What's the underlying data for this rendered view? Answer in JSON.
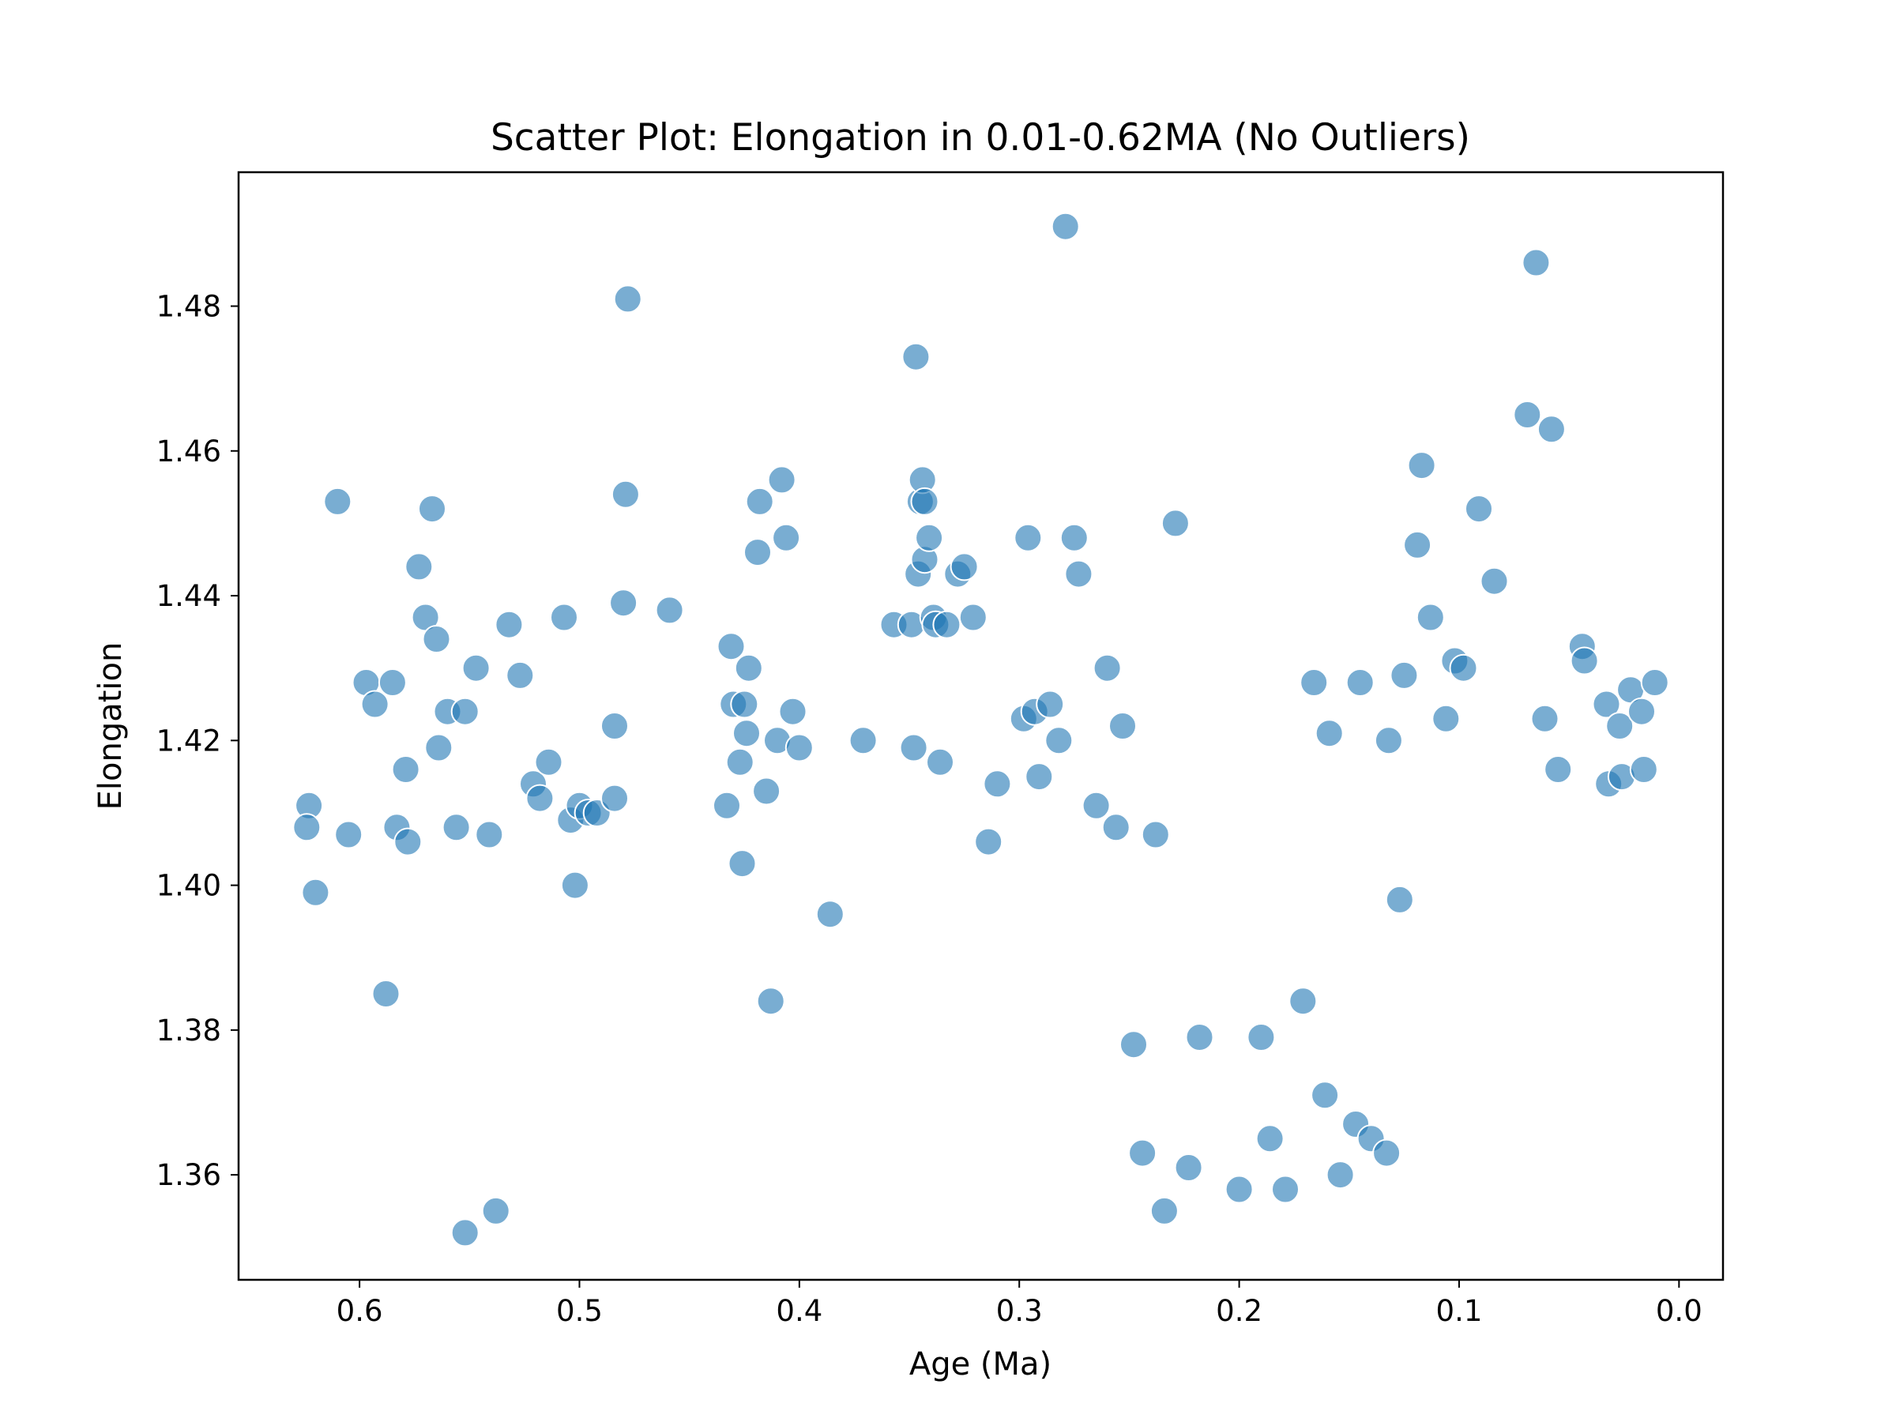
{
  "chart_data": {
    "type": "scatter",
    "title": "Scatter Plot: Elongation in 0.01-0.62MA (No Outliers)",
    "xlabel": "Age (Ma)",
    "ylabel": "Elongation",
    "xlim": [
      0.655,
      -0.02
    ],
    "ylim": [
      1.3455,
      1.4985
    ],
    "x_inverted": true,
    "grid": false,
    "legend": "none",
    "point_color": "#1f77b4",
    "x_ticks": [
      {
        "value": 0.6,
        "label": "0.6"
      },
      {
        "value": 0.5,
        "label": "0.5"
      },
      {
        "value": 0.4,
        "label": "0.4"
      },
      {
        "value": 0.3,
        "label": "0.3"
      },
      {
        "value": 0.2,
        "label": "0.2"
      },
      {
        "value": 0.1,
        "label": "0.1"
      },
      {
        "value": 0.0,
        "label": "0.0"
      }
    ],
    "y_ticks": [
      {
        "value": 1.36,
        "label": "1.36"
      },
      {
        "value": 1.38,
        "label": "1.38"
      },
      {
        "value": 1.4,
        "label": "1.40"
      },
      {
        "value": 1.42,
        "label": "1.42"
      },
      {
        "value": 1.44,
        "label": "1.44"
      },
      {
        "value": 1.46,
        "label": "1.46"
      },
      {
        "value": 1.48,
        "label": "1.48"
      }
    ],
    "series": [
      {
        "points": [
          [
            0.61,
            1.453
          ],
          [
            0.623,
            1.411
          ],
          [
            0.624,
            1.408
          ],
          [
            0.62,
            1.399
          ],
          [
            0.605,
            1.407
          ],
          [
            0.597,
            1.428
          ],
          [
            0.593,
            1.425
          ],
          [
            0.585,
            1.428
          ],
          [
            0.588,
            1.385
          ],
          [
            0.583,
            1.408
          ],
          [
            0.579,
            1.416
          ],
          [
            0.578,
            1.406
          ],
          [
            0.573,
            1.444
          ],
          [
            0.57,
            1.437
          ],
          [
            0.567,
            1.452
          ],
          [
            0.565,
            1.434
          ],
          [
            0.564,
            1.419
          ],
          [
            0.56,
            1.424
          ],
          [
            0.556,
            1.408
          ],
          [
            0.552,
            1.424
          ],
          [
            0.552,
            1.352
          ],
          [
            0.547,
            1.43
          ],
          [
            0.541,
            1.407
          ],
          [
            0.538,
            1.355
          ],
          [
            0.532,
            1.436
          ],
          [
            0.527,
            1.429
          ],
          [
            0.521,
            1.414
          ],
          [
            0.518,
            1.412
          ],
          [
            0.514,
            1.417
          ],
          [
            0.507,
            1.437
          ],
          [
            0.504,
            1.409
          ],
          [
            0.502,
            1.4
          ],
          [
            0.5,
            1.411
          ],
          [
            0.496,
            1.41
          ],
          [
            0.492,
            1.41
          ],
          [
            0.484,
            1.412
          ],
          [
            0.484,
            1.422
          ],
          [
            0.48,
            1.439
          ],
          [
            0.479,
            1.454
          ],
          [
            0.478,
            1.481
          ],
          [
            0.459,
            1.438
          ],
          [
            0.433,
            1.411
          ],
          [
            0.431,
            1.433
          ],
          [
            0.43,
            1.425
          ],
          [
            0.427,
            1.417
          ],
          [
            0.426,
            1.403
          ],
          [
            0.425,
            1.425
          ],
          [
            0.424,
            1.421
          ],
          [
            0.423,
            1.43
          ],
          [
            0.419,
            1.446
          ],
          [
            0.418,
            1.453
          ],
          [
            0.415,
            1.413
          ],
          [
            0.413,
            1.384
          ],
          [
            0.41,
            1.42
          ],
          [
            0.408,
            1.456
          ],
          [
            0.406,
            1.448
          ],
          [
            0.403,
            1.424
          ],
          [
            0.4,
            1.419
          ],
          [
            0.386,
            1.396
          ],
          [
            0.371,
            1.42
          ],
          [
            0.357,
            1.436
          ],
          [
            0.349,
            1.436
          ],
          [
            0.348,
            1.419
          ],
          [
            0.347,
            1.473
          ],
          [
            0.346,
            1.443
          ],
          [
            0.345,
            1.453
          ],
          [
            0.344,
            1.456
          ],
          [
            0.343,
            1.453
          ],
          [
            0.343,
            1.445
          ],
          [
            0.341,
            1.448
          ],
          [
            0.339,
            1.437
          ],
          [
            0.338,
            1.436
          ],
          [
            0.336,
            1.417
          ],
          [
            0.333,
            1.436
          ],
          [
            0.328,
            1.443
          ],
          [
            0.325,
            1.444
          ],
          [
            0.321,
            1.437
          ],
          [
            0.314,
            1.406
          ],
          [
            0.31,
            1.414
          ],
          [
            0.298,
            1.423
          ],
          [
            0.296,
            1.448
          ],
          [
            0.293,
            1.424
          ],
          [
            0.291,
            1.415
          ],
          [
            0.286,
            1.425
          ],
          [
            0.282,
            1.42
          ],
          [
            0.279,
            1.491
          ],
          [
            0.275,
            1.448
          ],
          [
            0.273,
            1.443
          ],
          [
            0.265,
            1.411
          ],
          [
            0.26,
            1.43
          ],
          [
            0.256,
            1.408
          ],
          [
            0.253,
            1.422
          ],
          [
            0.248,
            1.378
          ],
          [
            0.244,
            1.363
          ],
          [
            0.238,
            1.407
          ],
          [
            0.234,
            1.355
          ],
          [
            0.229,
            1.45
          ],
          [
            0.223,
            1.361
          ],
          [
            0.218,
            1.379
          ],
          [
            0.2,
            1.358
          ],
          [
            0.19,
            1.379
          ],
          [
            0.186,
            1.365
          ],
          [
            0.179,
            1.358
          ],
          [
            0.171,
            1.384
          ],
          [
            0.166,
            1.428
          ],
          [
            0.161,
            1.371
          ],
          [
            0.159,
            1.421
          ],
          [
            0.154,
            1.36
          ],
          [
            0.147,
            1.367
          ],
          [
            0.145,
            1.428
          ],
          [
            0.14,
            1.365
          ],
          [
            0.133,
            1.363
          ],
          [
            0.132,
            1.42
          ],
          [
            0.127,
            1.398
          ],
          [
            0.125,
            1.429
          ],
          [
            0.119,
            1.447
          ],
          [
            0.117,
            1.458
          ],
          [
            0.113,
            1.437
          ],
          [
            0.106,
            1.423
          ],
          [
            0.102,
            1.431
          ],
          [
            0.098,
            1.43
          ],
          [
            0.091,
            1.452
          ],
          [
            0.084,
            1.442
          ],
          [
            0.069,
            1.465
          ],
          [
            0.065,
            1.486
          ],
          [
            0.061,
            1.423
          ],
          [
            0.058,
            1.463
          ],
          [
            0.055,
            1.416
          ],
          [
            0.044,
            1.433
          ],
          [
            0.043,
            1.431
          ],
          [
            0.033,
            1.425
          ],
          [
            0.032,
            1.414
          ],
          [
            0.027,
            1.422
          ],
          [
            0.026,
            1.415
          ],
          [
            0.022,
            1.427
          ],
          [
            0.017,
            1.424
          ],
          [
            0.016,
            1.416
          ],
          [
            0.011,
            1.428
          ]
        ]
      }
    ]
  }
}
